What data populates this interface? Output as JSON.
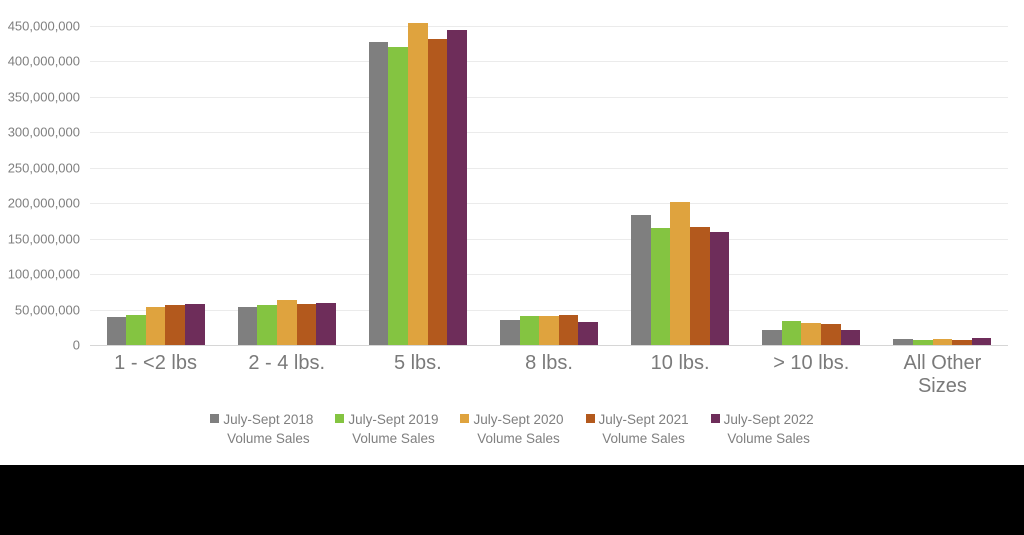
{
  "chart_data": {
    "type": "bar",
    "title": "",
    "xlabel": "",
    "ylabel": "",
    "ylim": [
      0,
      450000000
    ],
    "y_tick_step": 50000000,
    "grid": "horizontal",
    "legend_position": "bottom",
    "y_tick_labels_top_to_bottom": [
      "450,000,000",
      "400,000,000",
      "350,000,000",
      "300,000,000",
      "250,000,000",
      "200,000,000",
      "150,000,000",
      "100,000,000",
      "50,000,000",
      "0"
    ],
    "categories": [
      "1 - <2 lbs",
      "2 - 4 lbs.",
      "5 lbs.",
      "8 lbs.",
      "10 lbs.",
      "> 10 lbs.",
      "All Other Sizes"
    ],
    "series": [
      {
        "name": "July-Sept 2018 Volume Sales",
        "legend_line1": "July-Sept 2018",
        "legend_line2": "Volume Sales",
        "color": "#7f7f7f",
        "values": [
          40000000,
          53000000,
          428000000,
          35000000,
          184000000,
          21000000,
          8000000
        ]
      },
      {
        "name": "July-Sept 2019 Volume Sales",
        "legend_line1": "July-Sept 2019",
        "legend_line2": "Volume Sales",
        "color": "#84c441",
        "values": [
          43000000,
          56000000,
          420000000,
          41000000,
          165000000,
          34000000,
          7000000
        ]
      },
      {
        "name": "July-Sept 2020 Volume Sales",
        "legend_line1": "July-Sept 2020",
        "legend_line2": "Volume Sales",
        "color": "#dfa33e",
        "values": [
          54000000,
          63000000,
          455000000,
          41000000,
          202000000,
          31000000,
          9000000
        ]
      },
      {
        "name": "July-Sept 2021 Volume Sales",
        "legend_line1": "July-Sept 2021",
        "legend_line2": "Volume Sales",
        "color": "#b3591d",
        "values": [
          56000000,
          58000000,
          432000000,
          43000000,
          166000000,
          30000000,
          7000000
        ]
      },
      {
        "name": "July-Sept 2022 Volume Sales",
        "legend_line1": "July-Sept 2022",
        "legend_line2": "Volume Sales",
        "color": "#6e2d5a",
        "values": [
          58000000,
          60000000,
          445000000,
          33000000,
          160000000,
          21000000,
          10000000
        ]
      }
    ]
  },
  "decorations": {
    "black_band": {
      "color": "#000000"
    }
  }
}
